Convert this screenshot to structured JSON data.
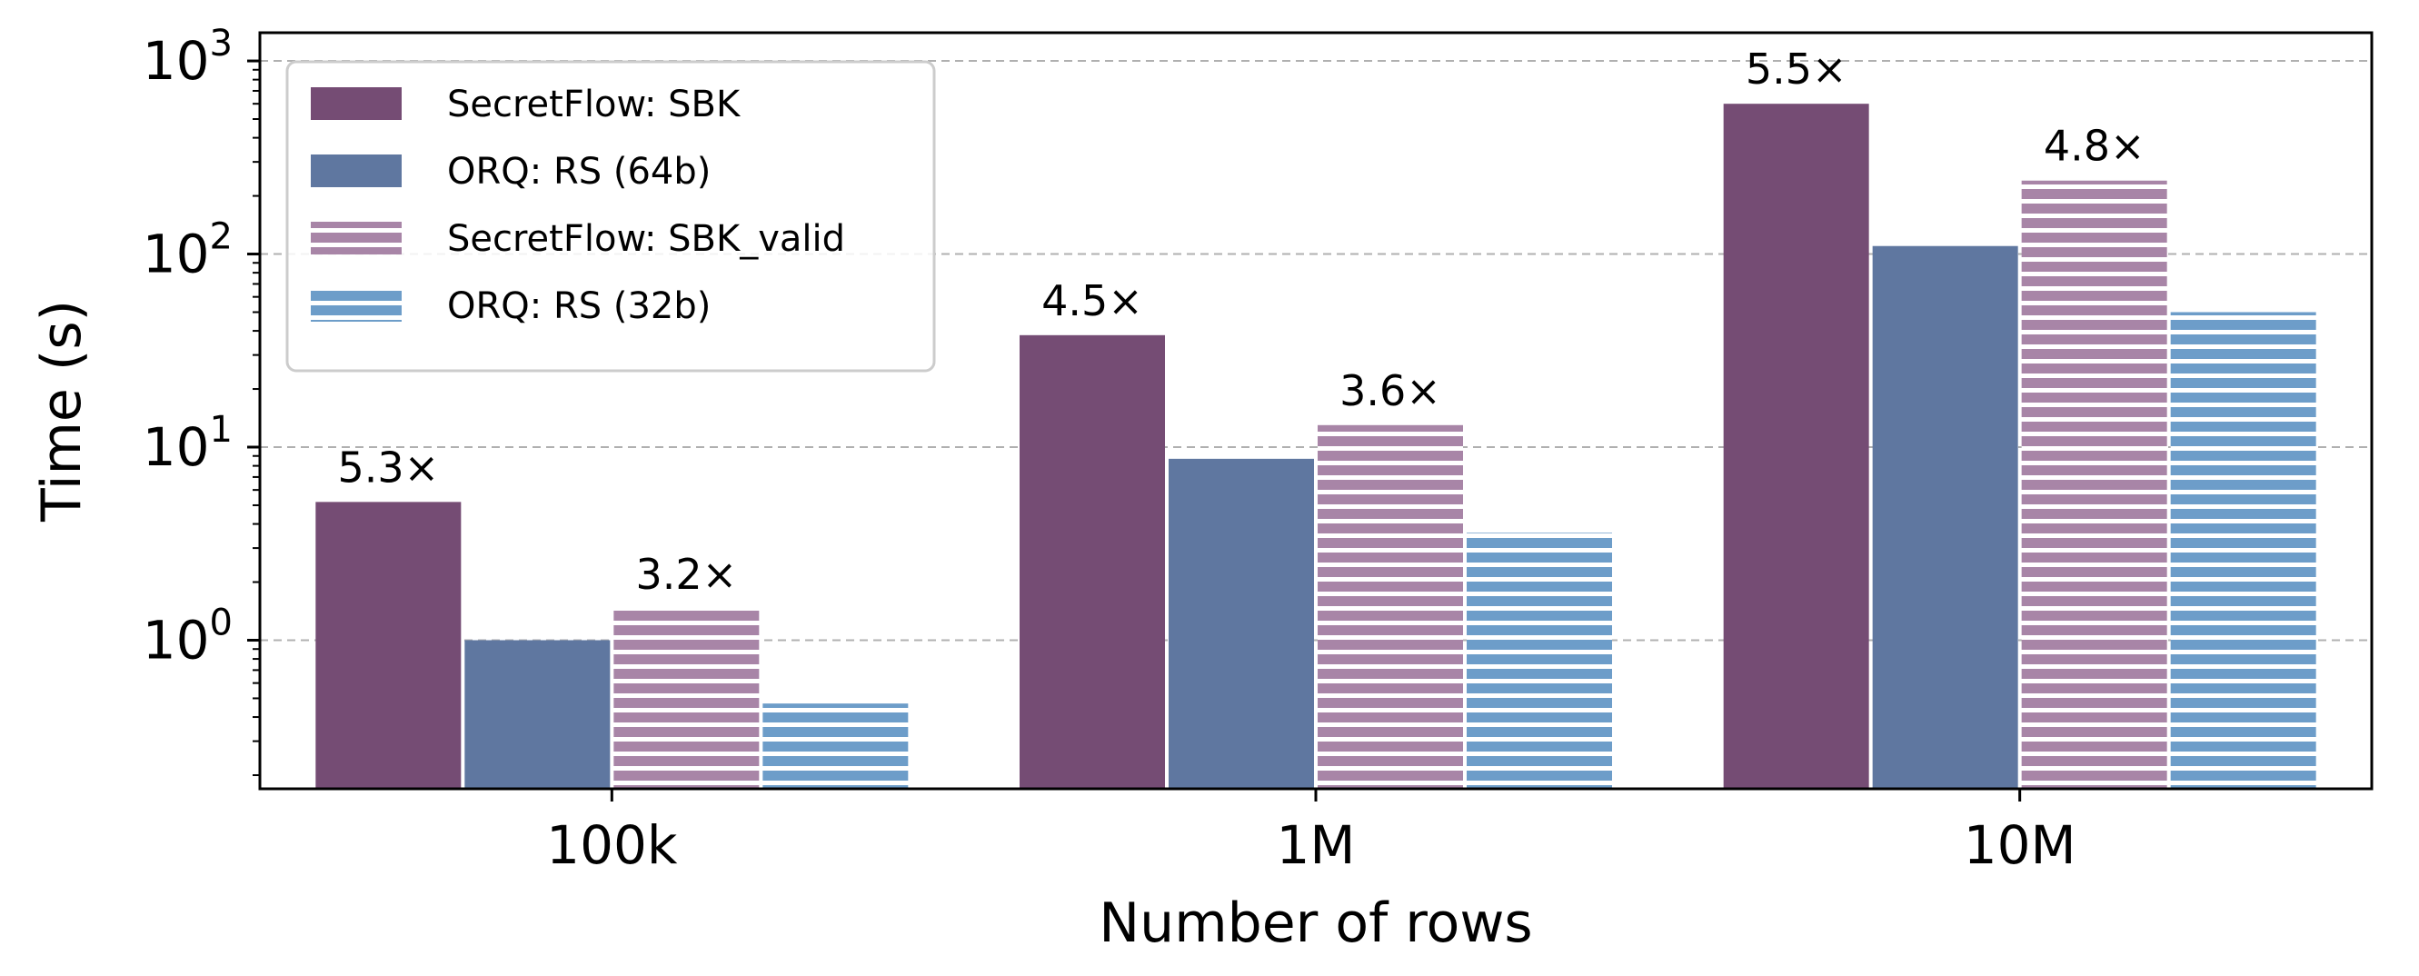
{
  "chart_data": {
    "type": "bar",
    "yscale": "log",
    "ylim": [
      0.17,
      1400
    ],
    "xlabel": "Number of rows",
    "ylabel": "Time (s)",
    "categories": [
      "100k",
      "1M",
      "10M"
    ],
    "y_ticks": [
      {
        "base": "10",
        "exp": "0",
        "value": 1
      },
      {
        "base": "10",
        "exp": "1",
        "value": 10
      },
      {
        "base": "10",
        "exp": "2",
        "value": 100
      },
      {
        "base": "10",
        "exp": "3",
        "value": 1000
      }
    ],
    "grid": "horizontal dashed at major ticks",
    "legend_position": "top-left",
    "series": [
      {
        "name": "SecretFlow: SBK",
        "values": [
          5.2,
          38,
          600
        ],
        "color": "#754c74",
        "hatch": false
      },
      {
        "name": "ORQ: RS (64b)",
        "values": [
          1.0,
          8.7,
          110
        ],
        "color": "#5f77a0",
        "hatch": false
      },
      {
        "name": "SecretFlow: SBK_valid",
        "values": [
          1.45,
          13,
          240
        ],
        "color": "#a885a7",
        "hatch": true
      },
      {
        "name": "ORQ: RS (32b)",
        "values": [
          0.47,
          3.6,
          50
        ],
        "color": "#6d9dc9",
        "hatch": true
      }
    ],
    "annotations": [
      {
        "category": 0,
        "series": 0,
        "text": "5.3×"
      },
      {
        "category": 0,
        "series": 2,
        "text": "3.2×"
      },
      {
        "category": 1,
        "series": 0,
        "text": "4.5×"
      },
      {
        "category": 1,
        "series": 2,
        "text": "3.6×"
      },
      {
        "category": 2,
        "series": 0,
        "text": "5.5×"
      },
      {
        "category": 2,
        "series": 2,
        "text": "4.8×"
      }
    ]
  }
}
